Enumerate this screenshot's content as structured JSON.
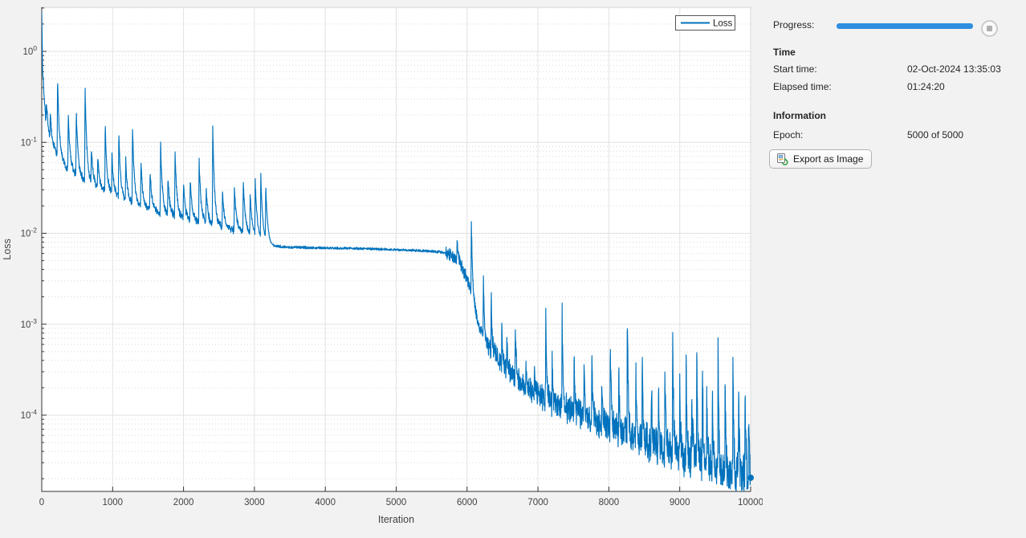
{
  "window": {
    "background": "#f2f2f2",
    "plot_background": "#ffffff"
  },
  "chart_data": {
    "type": "line",
    "title": "",
    "xlabel": "Iteration",
    "ylabel": "Loss",
    "x_range": [
      0,
      10000
    ],
    "x_ticks": [
      0,
      1000,
      2000,
      3000,
      4000,
      5000,
      6000,
      7000,
      8000,
      9000,
      10000
    ],
    "y_scale": "log",
    "y_tick_exponents": [
      0,
      -1,
      -2,
      -3,
      -4
    ],
    "y_range": [
      1.45e-05,
      3.05
    ],
    "grid": true,
    "minor_grid": true,
    "legend": {
      "label": "Loss",
      "position": "top-right"
    },
    "line_color": "#0072BD",
    "axis_color": "#333333",
    "grid_color": "#e2e2e2",
    "minor_grid_color": "#d9d9d9",
    "series": [
      {
        "name": "Loss",
        "trend": [
          [
            0,
            2.9
          ],
          [
            12,
            0.6
          ],
          [
            30,
            0.28
          ],
          [
            60,
            0.16
          ],
          [
            100,
            0.115
          ],
          [
            150,
            0.09
          ],
          [
            220,
            0.072
          ],
          [
            300,
            0.058
          ],
          [
            400,
            0.048
          ],
          [
            550,
            0.04
          ],
          [
            700,
            0.034
          ],
          [
            900,
            0.028
          ],
          [
            1100,
            0.024
          ],
          [
            1350,
            0.02
          ],
          [
            1600,
            0.0172
          ],
          [
            1900,
            0.015
          ],
          [
            2200,
            0.0133
          ],
          [
            2500,
            0.0118
          ],
          [
            2750,
            0.0108
          ],
          [
            3000,
            0.0096
          ],
          [
            3100,
            0.0085
          ],
          [
            3250,
            0.0073
          ],
          [
            3500,
            0.007
          ],
          [
            4000,
            0.0069
          ],
          [
            4500,
            0.0068
          ],
          [
            5000,
            0.0066
          ],
          [
            5400,
            0.0064
          ],
          [
            5650,
            0.0062
          ],
          [
            5800,
            0.0057
          ],
          [
            5900,
            0.0046
          ],
          [
            6000,
            0.0032
          ],
          [
            6080,
            0.0019
          ],
          [
            6160,
            0.001
          ],
          [
            6260,
            0.00066
          ],
          [
            6400,
            0.00045
          ],
          [
            6600,
            0.0003
          ],
          [
            6800,
            0.000215
          ],
          [
            7000,
            0.000165
          ],
          [
            7300,
            0.000125
          ],
          [
            7600,
            0.0001
          ],
          [
            8000,
            7.55e-05
          ],
          [
            8400,
            5.75e-05
          ],
          [
            8800,
            4.25e-05
          ],
          [
            9200,
            3.15e-05
          ],
          [
            9600,
            2.35e-05
          ],
          [
            9850,
            2e-05
          ],
          [
            10000,
            1.85e-05
          ]
        ],
        "spikes": [
          [
            23,
            0.5
          ],
          [
            65,
            0.27
          ],
          [
            120,
            0.2
          ],
          [
            223,
            0.49
          ],
          [
            374,
            0.21
          ],
          [
            487,
            0.22
          ],
          [
            611,
            0.4
          ],
          [
            700,
            0.08
          ],
          [
            790,
            0.07
          ],
          [
            895,
            0.16
          ],
          [
            990,
            0.07
          ],
          [
            1087,
            0.13
          ],
          [
            1185,
            0.06
          ],
          [
            1280,
            0.15
          ],
          [
            1400,
            0.06
          ],
          [
            1528,
            0.05
          ],
          [
            1676,
            0.105
          ],
          [
            1780,
            0.04
          ],
          [
            1880,
            0.085
          ],
          [
            2000,
            0.035
          ],
          [
            2095,
            0.04
          ],
          [
            2220,
            0.066
          ],
          [
            2320,
            0.03
          ],
          [
            2412,
            0.155
          ],
          [
            2550,
            0.028
          ],
          [
            2718,
            0.032
          ],
          [
            2843,
            0.039
          ],
          [
            2940,
            0.026
          ],
          [
            3012,
            0.036
          ],
          [
            3090,
            0.042
          ],
          [
            3160,
            0.031
          ],
          [
            5860,
            0.0082
          ],
          [
            6060,
            0.013
          ],
          [
            6230,
            0.0038
          ],
          [
            6340,
            0.0024
          ],
          [
            6490,
            0.0011
          ],
          [
            6560,
            0.0007
          ],
          [
            6680,
            0.0011
          ],
          [
            6830,
            0.00045
          ],
          [
            6950,
            0.0003
          ],
          [
            7110,
            0.00145
          ],
          [
            7200,
            0.0004
          ],
          [
            7340,
            0.0016
          ],
          [
            7510,
            0.0005
          ],
          [
            7650,
            0.00035
          ],
          [
            7760,
            0.0005
          ],
          [
            7900,
            0.0003
          ],
          [
            8020,
            0.0008
          ],
          [
            8140,
            0.0003
          ],
          [
            8260,
            0.0016
          ],
          [
            8380,
            0.00035
          ],
          [
            8470,
            0.0006
          ],
          [
            8600,
            0.00025
          ],
          [
            8700,
            0.0002
          ],
          [
            8790,
            0.00045
          ],
          [
            8900,
            0.00135
          ],
          [
            9000,
            0.0002
          ],
          [
            9090,
            0.0004
          ],
          [
            9170,
            0.00025
          ],
          [
            9240,
            0.00045
          ],
          [
            9320,
            0.0003
          ],
          [
            9380,
            0.00015
          ],
          [
            9460,
            0.0002
          ],
          [
            9540,
            0.0008
          ],
          [
            9640,
            0.00025
          ],
          [
            9750,
            0.0006
          ],
          [
            9830,
            0.0002
          ],
          [
            9920,
            0.0003
          ],
          [
            9970,
            0.00012
          ]
        ],
        "end_marker": [
          10000,
          2.05e-05
        ]
      }
    ]
  },
  "panel": {
    "progress_label": "Progress:",
    "progress_percent": 100,
    "progress_color": "#2e8ee0",
    "time_header": "Time",
    "start_time_label": "Start time:",
    "start_time_value": "02-Oct-2024 13:35:03",
    "elapsed_label": "Elapsed time:",
    "elapsed_value": "01:24:20",
    "info_header": "Information",
    "epoch_label": "Epoch:",
    "epoch_value": "5000 of 5000",
    "export_button_label": "Export as Image"
  }
}
